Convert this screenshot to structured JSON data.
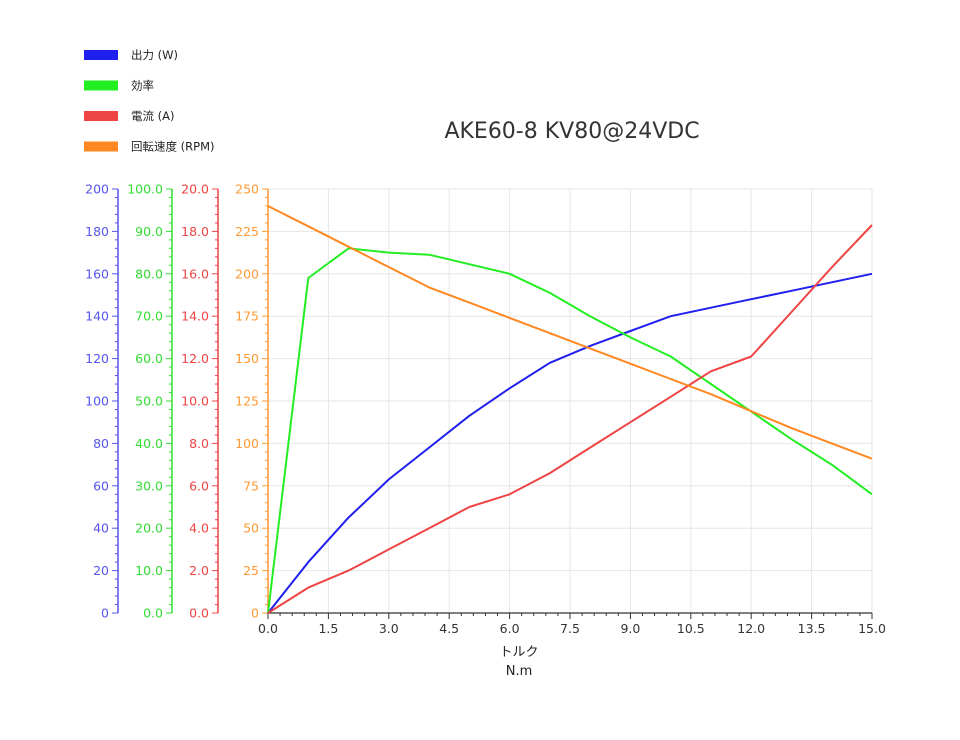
{
  "chart_data": {
    "type": "line",
    "title": "AKE60-8 KV80@24VDC",
    "xlabel": "トルク",
    "xunit": "N.m",
    "xlim": [
      0,
      15
    ],
    "x_ticks": [
      "0.0",
      "1.5",
      "3.0",
      "4.5",
      "6.0",
      "7.5",
      "9.0",
      "10.5",
      "12.0",
      "13.5",
      "15.0"
    ],
    "grid": true,
    "legend_position": "top-left",
    "axes": [
      {
        "id": "power",
        "color": "#5555ee",
        "ylim": [
          0,
          200
        ],
        "ticks": [
          "0",
          "20",
          "40",
          "60",
          "80",
          "100",
          "120",
          "140",
          "160",
          "180",
          "200"
        ]
      },
      {
        "id": "efficiency",
        "color": "#33dd33",
        "ylim": [
          0,
          100
        ],
        "ticks": [
          "0.0",
          "10.0",
          "20.0",
          "30.0",
          "40.0",
          "50.0",
          "60.0",
          "70.0",
          "80.0",
          "90.0",
          "100.0"
        ]
      },
      {
        "id": "current",
        "color": "#ee4444",
        "ylim": [
          0,
          20
        ],
        "ticks": [
          "0.0",
          "2.0",
          "4.0",
          "6.0",
          "8.0",
          "10.0",
          "12.0",
          "14.0",
          "16.0",
          "18.0",
          "20.0"
        ]
      },
      {
        "id": "rpm",
        "color": "#ff9933",
        "ylim": [
          0,
          250
        ],
        "ticks": [
          "0",
          "25",
          "50",
          "75",
          "100",
          "125",
          "150",
          "175",
          "200",
          "225",
          "250"
        ]
      }
    ],
    "series": [
      {
        "name": "出力 (W)",
        "axis": "power",
        "color": "#1f1fee",
        "x": [
          0,
          1,
          2,
          3,
          4,
          5,
          6,
          7,
          8,
          9,
          10,
          11,
          12,
          13,
          14,
          15
        ],
        "y": [
          0,
          24,
          45,
          63,
          78,
          93,
          106,
          118,
          126,
          133,
          140,
          144,
          148,
          152,
          156,
          160
        ]
      },
      {
        "name": "効率",
        "axis": "efficiency",
        "color": "#22ee22",
        "x": [
          0,
          1,
          2,
          3,
          4,
          6,
          7,
          8,
          9,
          10,
          11,
          12,
          13,
          14,
          15
        ],
        "y": [
          0,
          79,
          86,
          85,
          84.5,
          80,
          75.5,
          70,
          65,
          60.5,
          54,
          47.5,
          41,
          35,
          28
        ]
      },
      {
        "name": "電流 (A)",
        "axis": "current",
        "color": "#ee4444",
        "x": [
          0,
          1,
          2,
          3,
          4,
          5,
          6,
          7,
          8,
          9,
          10,
          11,
          12,
          13,
          14,
          15
        ],
        "y": [
          0,
          1.2,
          2.0,
          3.0,
          4.0,
          5.0,
          5.6,
          6.6,
          7.8,
          9.0,
          10.2,
          11.4,
          12.1,
          14.2,
          16.3,
          18.3
        ]
      },
      {
        "name": "回転速度 (RPM)",
        "axis": "rpm",
        "color": "#ff8822",
        "x": [
          0,
          1,
          2,
          3,
          4,
          5,
          6,
          7,
          8,
          9,
          10,
          11,
          12,
          13,
          14,
          15
        ],
        "y": [
          240,
          228,
          216,
          204,
          192,
          183,
          174,
          165,
          156,
          147,
          138,
          129,
          119,
          109,
          100,
          91
        ]
      }
    ]
  }
}
